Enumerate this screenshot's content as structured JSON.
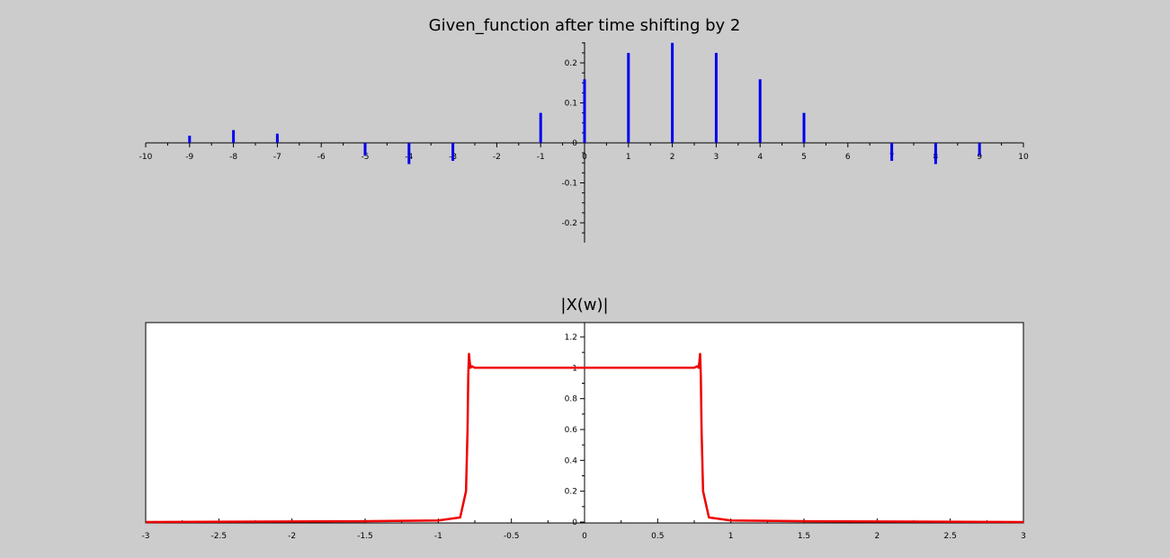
{
  "chart_data": [
    {
      "type": "stem",
      "title": "Given_function after time shifting by 2",
      "xlabel": "",
      "ylabel": "",
      "xlim": [
        -10,
        10
      ],
      "ylim": [
        -0.25,
        0.25
      ],
      "x_ticks": [
        "-10",
        "-9",
        "-8",
        "-7",
        "-6",
        "-5",
        "-4",
        "-3",
        "-2",
        "-1",
        "0",
        "1",
        "2",
        "3",
        "4",
        "5",
        "6",
        "7",
        "8",
        "9",
        "10"
      ],
      "y_ticks": [
        "0.2",
        "0.1",
        "0",
        "-0.1",
        "-0.2"
      ],
      "series": [
        {
          "color": "#0000ee",
          "x": [
            -9,
            -8,
            -7,
            -6,
            -5,
            -4,
            -3,
            -2,
            -1,
            0,
            1,
            2,
            3,
            4,
            5,
            6,
            7,
            8,
            9
          ],
          "y": [
            0.018,
            0.032,
            0.023,
            0,
            -0.032,
            -0.053,
            -0.045,
            0,
            0.075,
            0.159,
            0.225,
            0.25,
            0.225,
            0.159,
            0.075,
            0,
            -0.045,
            -0.053,
            -0.032
          ]
        }
      ],
      "grid": false,
      "background": "#cccccc"
    },
    {
      "type": "line",
      "title": "|X(w)|",
      "xlabel": "",
      "ylabel": "",
      "xlim": [
        -3,
        3
      ],
      "ylim": [
        0,
        1.3
      ],
      "x_ticks": [
        "-3",
        "-2.5",
        "-2",
        "-1.5",
        "-1",
        "-0.5",
        "0",
        "0.5",
        "1",
        "1.5",
        "2",
        "2.5",
        "3"
      ],
      "y_ticks": [
        "1.2",
        "1",
        "0.8",
        "0.6",
        "0.4",
        "0.2",
        "0"
      ],
      "series": [
        {
          "color": "#ee0000",
          "x": [
            -3,
            -1.55,
            -1.0,
            -0.85,
            -0.81,
            -0.8,
            -0.795,
            -0.79,
            -0.785,
            -0.78,
            -0.77,
            -0.75,
            -0.7,
            0,
            0.7,
            0.75,
            0.77,
            0.78,
            0.785,
            0.79,
            0.795,
            0.8,
            0.81,
            0.85,
            1.0,
            1.55,
            3
          ],
          "y": [
            0,
            0.005,
            0.01,
            0.03,
            0.2,
            0.6,
            0.95,
            1.09,
            1.04,
            1.0,
            1.01,
            1.0,
            1.0,
            1.0,
            1.0,
            1.0,
            1.01,
            1.0,
            1.04,
            1.09,
            0.95,
            0.6,
            0.2,
            0.03,
            0.01,
            0.005,
            0
          ]
        }
      ],
      "grid": false,
      "background": "#ffffff"
    }
  ]
}
